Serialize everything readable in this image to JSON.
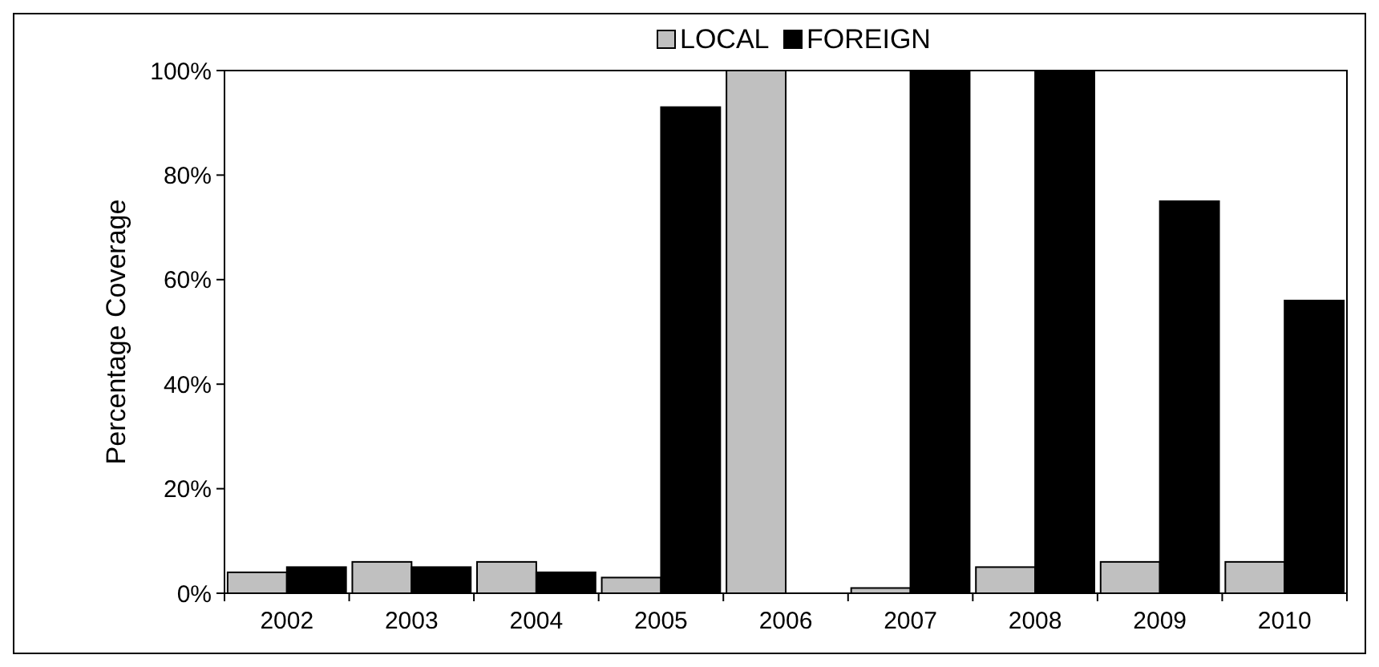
{
  "chart_data": {
    "type": "bar",
    "ylabel": "Percentage Coverage",
    "categories": [
      "2002",
      "2003",
      "2004",
      "2005",
      "2006",
      "2007",
      "2008",
      "2009",
      "2010"
    ],
    "series": [
      {
        "name": "LOCAL",
        "color": "#c0c0c0",
        "values": [
          4,
          6,
          6,
          3,
          100,
          1,
          5,
          6,
          6
        ]
      },
      {
        "name": "FOREIGN",
        "color": "#000000",
        "values": [
          5,
          5,
          4,
          93,
          0,
          100,
          100,
          75,
          56
        ]
      }
    ],
    "ylim": [
      0,
      100
    ],
    "yticks": [
      {
        "value": 0,
        "label": "0%"
      },
      {
        "value": 20,
        "label": "20%"
      },
      {
        "value": 40,
        "label": "40%"
      },
      {
        "value": 60,
        "label": "60%"
      },
      {
        "value": 80,
        "label": "80%"
      },
      {
        "value": 100,
        "label": "100%"
      }
    ],
    "grid": false,
    "legend": "top"
  }
}
